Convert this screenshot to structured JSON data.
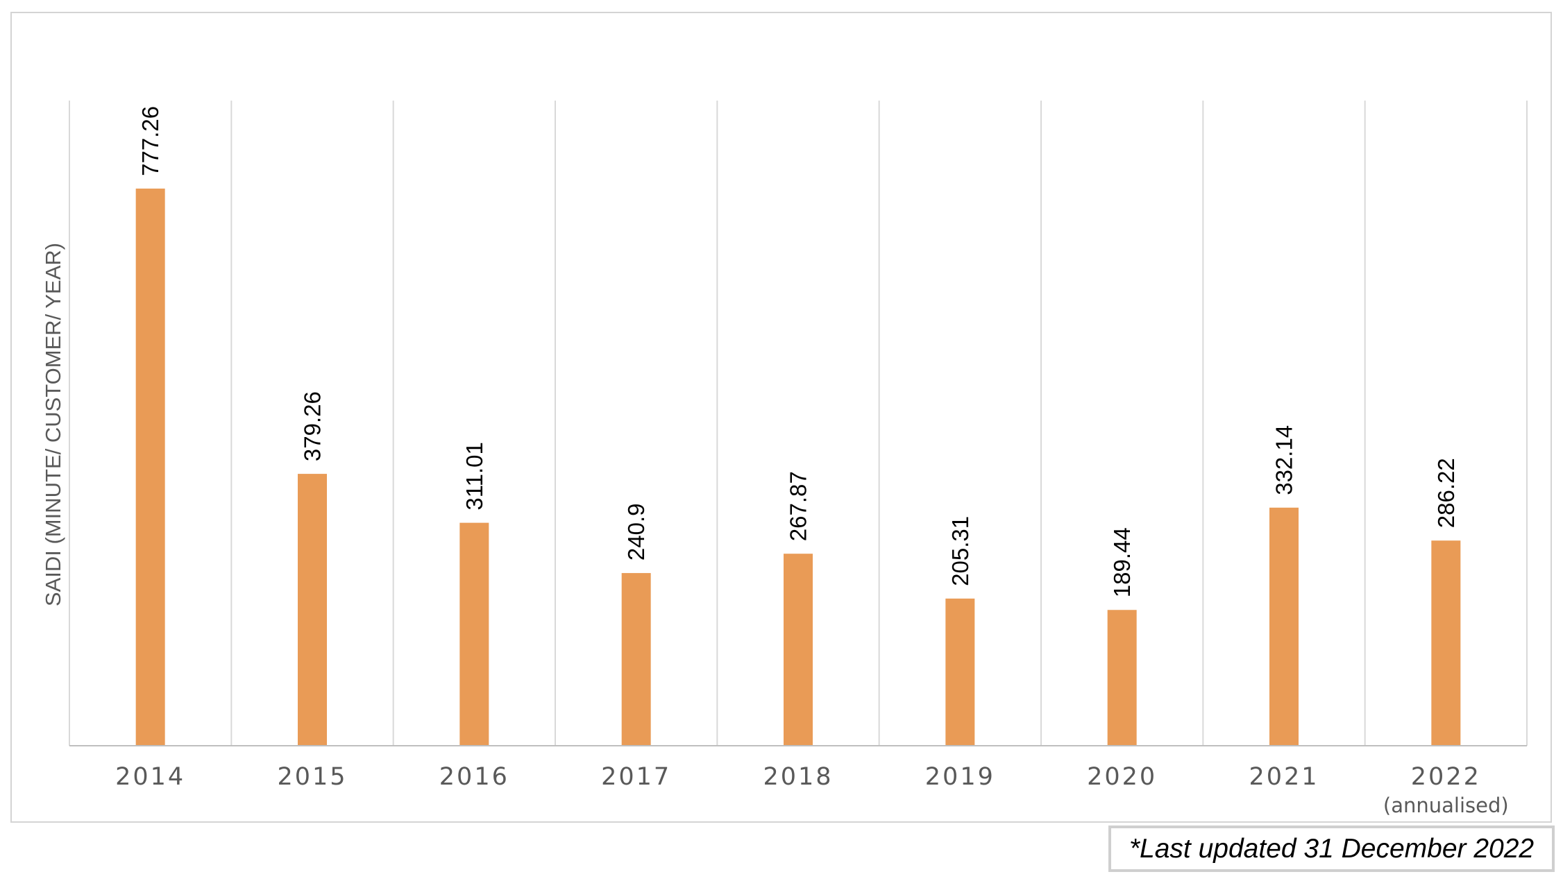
{
  "chart_data": {
    "type": "bar",
    "ylabel": "SAIDI (MINUTE/ CUSTOMER/ YEAR)",
    "xlabel": "",
    "categories": [
      "2014",
      "2015",
      "2016",
      "2017",
      "2018",
      "2019",
      "2020",
      "2021",
      "2022"
    ],
    "category_sublabels": [
      "",
      "",
      "",
      "",
      "",
      "",
      "",
      "",
      "(annualised)"
    ],
    "values": [
      777.26,
      379.26,
      311.01,
      240.9,
      267.87,
      205.31,
      189.44,
      332.14,
      286.22
    ],
    "value_labels": [
      "777.26",
      "379.26",
      "311.01",
      "240.9",
      "267.87",
      "205.31",
      "189.44",
      "332.14",
      "286.22"
    ],
    "ylim": [
      0,
      900
    ],
    "grid": "vertical category separators",
    "bar_color": "#E99B56",
    "gridline_color": "#D9D9D9",
    "axis_color": "#BFBFBF"
  },
  "footnote": "*Last updated 31 December 2022"
}
